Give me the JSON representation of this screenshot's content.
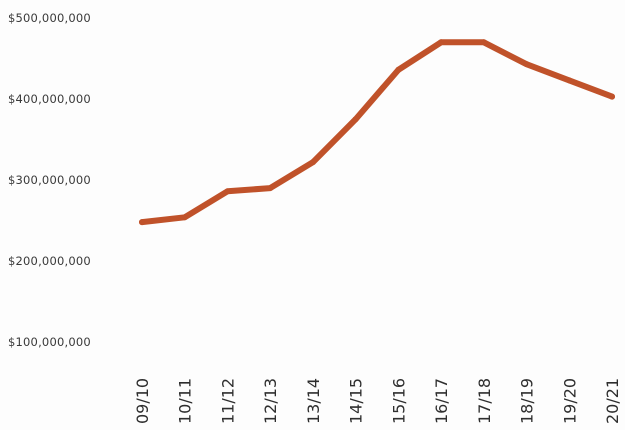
{
  "chart_data": {
    "type": "line",
    "title": "",
    "xlabel": "",
    "ylabel": "",
    "categories": [
      "09/10",
      "10/11",
      "11/12",
      "12/13",
      "13/14",
      "14/15",
      "15/16",
      "16/17",
      "17/18",
      "18/19",
      "19/20",
      "20/21"
    ],
    "series": [
      {
        "values": [
          248000000,
          254000000,
          286000000,
          290000000,
          322000000,
          375000000,
          436000000,
          470000000,
          470000000,
          443000000,
          423000000,
          403000000
        ],
        "color": "#c0522a"
      }
    ],
    "ylim": [
      100000000,
      500000000
    ],
    "yticks": [
      100000000,
      200000000,
      300000000,
      400000000,
      500000000
    ],
    "ytick_labels": [
      "$100,000,000",
      "$200,000,000",
      "$300,000,000",
      "$400,000,000",
      "$500,000,000"
    ],
    "grid": false,
    "legend": "none"
  }
}
